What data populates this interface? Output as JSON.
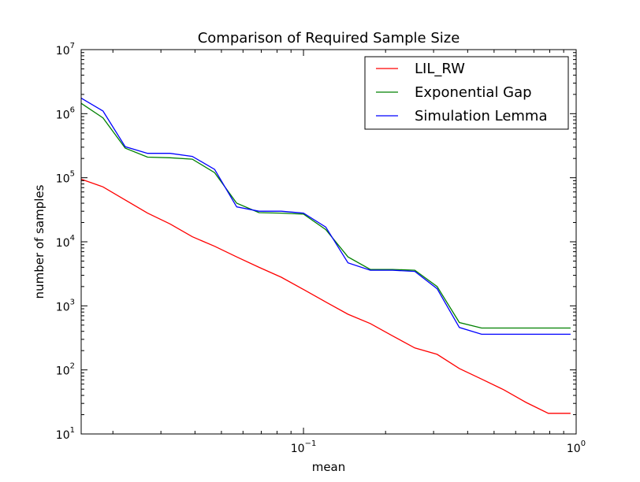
{
  "chart_data": {
    "type": "line",
    "title": "Comparison of Required Sample Size",
    "xlabel": "mean",
    "ylabel": "number of samples",
    "xscale": "log",
    "yscale": "log",
    "xlim": [
      0.0153,
      1.0
    ],
    "ylim": [
      10,
      10000000
    ],
    "grid": false,
    "legend_position": "top-right",
    "x_ticks": [
      {
        "value": 0.1,
        "base": "10",
        "exp": "−1"
      },
      {
        "value": 1,
        "base": "10",
        "exp": "0"
      }
    ],
    "y_ticks": [
      {
        "value": 10,
        "base": "10",
        "exp": "1"
      },
      {
        "value": 100,
        "base": "10",
        "exp": "2"
      },
      {
        "value": 1000,
        "base": "10",
        "exp": "3"
      },
      {
        "value": 10000,
        "base": "10",
        "exp": "4"
      },
      {
        "value": 100000,
        "base": "10",
        "exp": "5"
      },
      {
        "value": 1000000,
        "base": "10",
        "exp": "6"
      },
      {
        "value": 10000000,
        "base": "10",
        "exp": "7"
      }
    ],
    "x": [
      0.0153,
      0.0184,
      0.0222,
      0.0268,
      0.0324,
      0.0391,
      0.0472,
      0.0569,
      0.0687,
      0.0829,
      0.1,
      0.1207,
      0.1456,
      0.1758,
      0.2121,
      0.256,
      0.309,
      0.3728,
      0.45,
      0.5429,
      0.6551,
      0.7906,
      0.9541
    ],
    "series": [
      {
        "name": "LIL_RW",
        "color": "#ff0000",
        "values": [
          95000,
          72000,
          45000,
          28000,
          19000,
          12000,
          8500,
          5800,
          4000,
          2800,
          1800,
          1150,
          740,
          530,
          340,
          220,
          175,
          105,
          72,
          49,
          31,
          21,
          21
        ]
      },
      {
        "name": "Exponential Gap",
        "color": "#008000",
        "values": [
          1450000,
          860000,
          290000,
          210000,
          205000,
          195000,
          120000,
          40000,
          28500,
          28000,
          27000,
          15500,
          5800,
          3700,
          3700,
          3600,
          2000,
          550,
          450,
          450,
          450,
          450,
          450
        ]
      },
      {
        "name": "Simulation Lemma",
        "color": "#0000ff",
        "values": [
          1750000,
          1100000,
          305000,
          240000,
          240000,
          215000,
          135000,
          35000,
          30000,
          30000,
          28000,
          17000,
          4700,
          3600,
          3600,
          3450,
          1850,
          460,
          360,
          360,
          360,
          360,
          360
        ]
      }
    ]
  }
}
